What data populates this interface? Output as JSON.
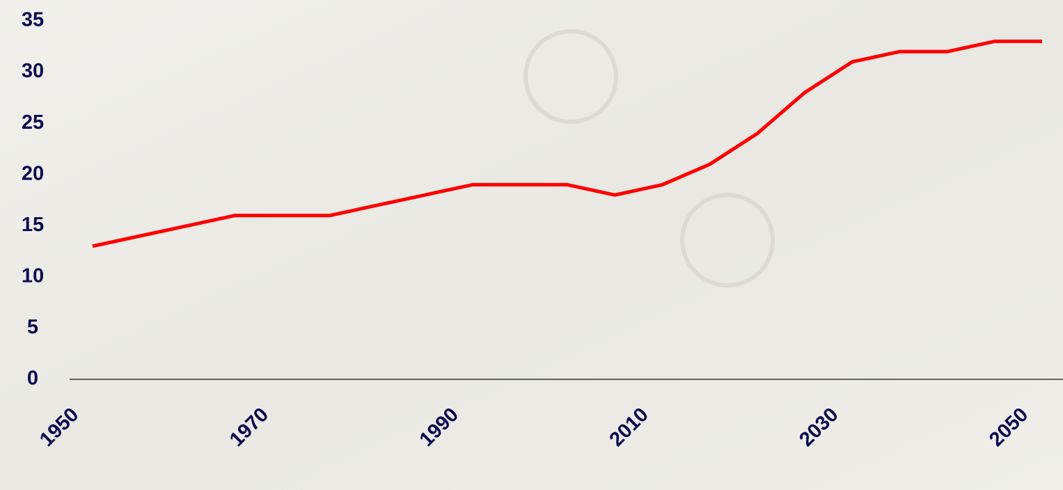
{
  "chart_data": {
    "type": "line",
    "x": [
      1950,
      1955,
      1960,
      1965,
      1970,
      1975,
      1980,
      1985,
      1990,
      1995,
      2000,
      2005,
      2010,
      2015,
      2020,
      2025,
      2030,
      2035,
      2040,
      2045,
      2050
    ],
    "values": [
      13,
      14,
      15,
      16,
      16,
      16,
      17,
      18,
      19,
      19,
      19,
      18,
      19,
      21,
      24,
      28,
      31,
      32,
      32,
      33,
      33
    ],
    "color": "#ff0000",
    "xlim": [
      1950,
      2050
    ],
    "xticks": [
      1950,
      1970,
      1990,
      2010,
      2030,
      2050
    ],
    "ylim": [
      0,
      35
    ],
    "yticks": [
      0,
      5,
      10,
      15,
      20,
      25,
      30,
      35
    ]
  }
}
